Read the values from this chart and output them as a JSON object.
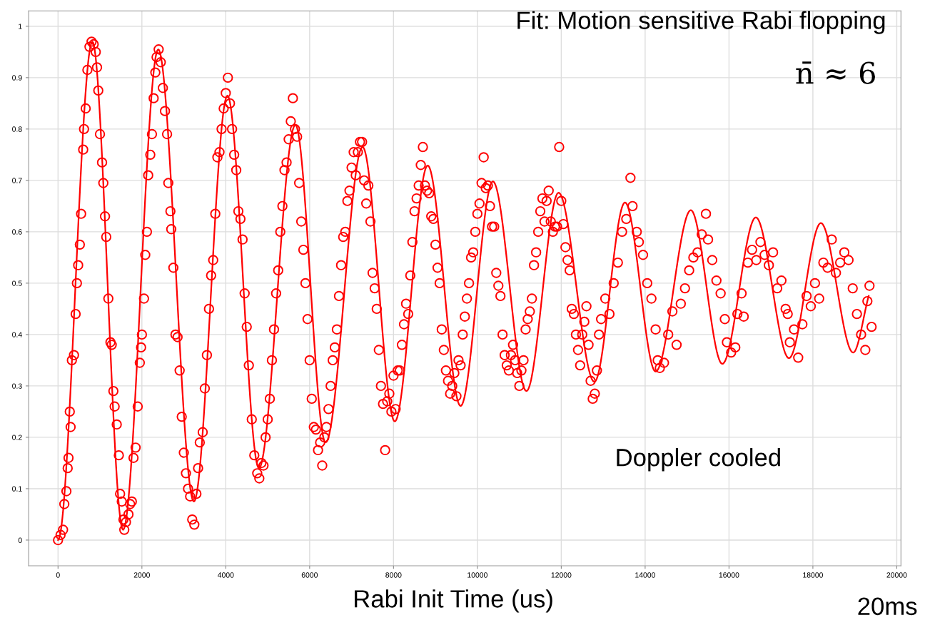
{
  "chart_data": {
    "type": "scatter",
    "xlabel": "Rabi Init Time (us)",
    "annotations": [
      "Fit: Motion sensitive Rabi flopping",
      "n̄ ≈ 6",
      "Doppler cooled",
      "20ms"
    ],
    "xlim": [
      -700,
      20100
    ],
    "ylim": [
      -0.05,
      1.03
    ],
    "xticks": [
      0,
      2000,
      4000,
      6000,
      8000,
      10000,
      12000,
      14000,
      16000,
      18000,
      20000
    ],
    "yticks": [
      0,
      0.1,
      0.2,
      0.3,
      0.4,
      0.5,
      0.6,
      0.7,
      0.8,
      0.9,
      1
    ],
    "grid": true,
    "legend": false,
    "series": [
      {
        "marker": "circle",
        "color": "#ff0000",
        "x": [
          0,
          60,
          120,
          150,
          200,
          230,
          250,
          300,
          280,
          330,
          380,
          420,
          450,
          480,
          520,
          550,
          600,
          620,
          660,
          700,
          750,
          800,
          850,
          900,
          930,
          960,
          1000,
          1050,
          1080,
          1120,
          1150,
          1200,
          1250,
          1280,
          1320,
          1350,
          1400,
          1450,
          1480,
          1520,
          1560,
          1580,
          1620,
          1680,
          1720,
          1760,
          1800,
          1850,
          1900,
          1950,
          1980,
          2000,
          2050,
          2080,
          2120,
          2150,
          2200,
          2240,
          2280,
          2320,
          2350,
          2400,
          2450,
          2500,
          2550,
          2600,
          2630,
          2680,
          2700,
          2750,
          2800,
          2850,
          2900,
          2950,
          3000,
          3050,
          3100,
          3150,
          3200,
          3250,
          3300,
          3340,
          3380,
          3450,
          3500,
          3550,
          3600,
          3650,
          3700,
          3750,
          3800,
          3850,
          3900,
          3950,
          4000,
          4050,
          4100,
          4150,
          4200,
          4250,
          4300,
          4350,
          4400,
          4450,
          4500,
          4550,
          4620,
          4680,
          4750,
          4800,
          4850,
          4900,
          4950,
          5000,
          5050,
          5100,
          5150,
          5200,
          5250,
          5300,
          5350,
          5400,
          5450,
          5500,
          5550,
          5600,
          5650,
          5700,
          5750,
          5800,
          5850,
          5900,
          5950,
          6000,
          6050,
          6100,
          6150,
          6200,
          6250,
          6300,
          6350,
          6400,
          6450,
          6500,
          6550,
          6600,
          6650,
          6700,
          6750,
          6800,
          6850,
          6900,
          6950,
          7000,
          7050,
          7100,
          7150,
          7200,
          7250,
          7300,
          7350,
          7400,
          7450,
          7500,
          7550,
          7600,
          7650,
          7700,
          7750,
          7800,
          7850,
          7900,
          7950,
          8000,
          8050,
          8100,
          8150,
          8200,
          8250,
          8300,
          8350,
          8400,
          8450,
          8500,
          8550,
          8600,
          8650,
          8700,
          8750,
          8800,
          8850,
          8900,
          8950,
          9000,
          9050,
          9100,
          9150,
          9200,
          9250,
          9300,
          9350,
          9400,
          9450,
          9500,
          9550,
          9600,
          9650,
          9700,
          9750,
          9800,
          9850,
          9900,
          9950,
          10000,
          10050,
          10100,
          10150,
          10200,
          10250,
          10300,
          10350,
          10400,
          10450,
          10500,
          10550,
          10600,
          10650,
          10700,
          10750,
          10800,
          10850,
          10900,
          10950,
          11000,
          11050,
          11100,
          11150,
          11200,
          11250,
          11300,
          11350,
          11400,
          11450,
          11500,
          11550,
          11600,
          11650,
          11700,
          11750,
          11800,
          11850,
          11900,
          11950,
          12000,
          12050,
          12100,
          12150,
          12200,
          12250,
          12300,
          12350,
          12400,
          12450,
          12500,
          12550,
          12600,
          12650,
          12700,
          12750,
          12800,
          12850,
          12900,
          12950,
          13050,
          13150,
          13250,
          13350,
          13450,
          13550,
          13650,
          13700,
          13800,
          13850,
          13950,
          14050,
          14150,
          14250,
          14300,
          14350,
          14450,
          14550,
          14650,
          14750,
          14850,
          14950,
          15050,
          15150,
          15250,
          15350,
          15450,
          15500,
          15600,
          15700,
          15800,
          15900,
          15950,
          16050,
          16150,
          16200,
          16300,
          16350,
          16450,
          16550,
          16650,
          16750,
          16850,
          16950,
          17050,
          17150,
          17250,
          17350,
          17400,
          17450,
          17550,
          17650,
          17750,
          17850,
          17950,
          18050,
          18150,
          18250,
          18350,
          18450,
          18550,
          18650,
          18750,
          18850,
          18950,
          19050,
          19150,
          19250,
          19300,
          19350,
          19400
        ],
        "values": [
          0,
          0.01,
          0.02,
          0.07,
          0.095,
          0.14,
          0.16,
          0.22,
          0.25,
          0.35,
          0.36,
          0.44,
          0.5,
          0.535,
          0.575,
          0.635,
          0.76,
          0.8,
          0.84,
          0.915,
          0.96,
          0.97,
          0.965,
          0.95,
          0.92,
          0.875,
          0.79,
          0.735,
          0.695,
          0.63,
          0.59,
          0.47,
          0.385,
          0.38,
          0.29,
          0.26,
          0.225,
          0.165,
          0.09,
          0.075,
          0.04,
          0.02,
          0.035,
          0.05,
          0.07,
          0.075,
          0.16,
          0.18,
          0.26,
          0.345,
          0.375,
          0.4,
          0.47,
          0.555,
          0.6,
          0.71,
          0.75,
          0.79,
          0.86,
          0.91,
          0.94,
          0.955,
          0.93,
          0.88,
          0.835,
          0.79,
          0.695,
          0.64,
          0.605,
          0.53,
          0.4,
          0.395,
          0.33,
          0.24,
          0.17,
          0.13,
          0.1,
          0.085,
          0.04,
          0.03,
          0.09,
          0.14,
          0.19,
          0.21,
          0.295,
          0.36,
          0.45,
          0.515,
          0.545,
          0.635,
          0.745,
          0.755,
          0.8,
          0.84,
          0.87,
          0.9,
          0.85,
          0.8,
          0.75,
          0.72,
          0.64,
          0.625,
          0.585,
          0.48,
          0.415,
          0.34,
          0.235,
          0.165,
          0.13,
          0.12,
          0.15,
          0.145,
          0.2,
          0.235,
          0.275,
          0.35,
          0.41,
          0.48,
          0.525,
          0.6,
          0.65,
          0.72,
          0.735,
          0.78,
          0.815,
          0.86,
          0.8,
          0.785,
          0.695,
          0.62,
          0.565,
          0.5,
          0.43,
          0.35,
          0.275,
          0.22,
          0.215,
          0.175,
          0.19,
          0.145,
          0.2,
          0.22,
          0.255,
          0.3,
          0.35,
          0.375,
          0.41,
          0.475,
          0.535,
          0.59,
          0.6,
          0.66,
          0.68,
          0.725,
          0.755,
          0.71,
          0.755,
          0.775,
          0.775,
          0.7,
          0.655,
          0.69,
          0.62,
          0.52,
          0.49,
          0.45,
          0.37,
          0.3,
          0.265,
          0.175,
          0.27,
          0.285,
          0.25,
          0.32,
          0.255,
          0.33,
          0.33,
          0.38,
          0.42,
          0.46,
          0.44,
          0.515,
          0.58,
          0.64,
          0.665,
          0.69,
          0.73,
          0.765,
          0.69,
          0.68,
          0.675,
          0.63,
          0.625,
          0.575,
          0.53,
          0.5,
          0.41,
          0.37,
          0.33,
          0.31,
          0.285,
          0.3,
          0.325,
          0.28,
          0.35,
          0.34,
          0.4,
          0.435,
          0.47,
          0.5,
          0.55,
          0.56,
          0.6,
          0.635,
          0.655,
          0.695,
          0.745,
          0.685,
          0.69,
          0.65,
          0.61,
          0.61,
          0.52,
          0.495,
          0.475,
          0.4,
          0.36,
          0.34,
          0.33,
          0.36,
          0.38,
          0.35,
          0.325,
          0.3,
          0.33,
          0.35,
          0.41,
          0.43,
          0.445,
          0.47,
          0.535,
          0.56,
          0.6,
          0.64,
          0.665,
          0.62,
          0.66,
          0.68,
          0.62,
          0.6,
          0.61,
          0.61,
          0.765,
          0.66,
          0.615,
          0.57,
          0.545,
          0.525,
          0.45,
          0.44,
          0.4,
          0.37,
          0.34,
          0.4,
          0.425,
          0.455,
          0.38,
          0.31,
          0.275,
          0.285,
          0.33,
          0.4,
          0.43,
          0.47,
          0.44,
          0.5,
          0.54,
          0.6,
          0.625,
          0.705,
          0.65,
          0.6,
          0.58,
          0.555,
          0.5,
          0.47,
          0.41,
          0.35,
          0.335,
          0.345,
          0.4,
          0.445,
          0.38,
          0.46,
          0.49,
          0.525,
          0.55,
          0.56,
          0.595,
          0.635,
          0.585,
          0.545,
          0.505,
          0.48,
          0.43,
          0.385,
          0.365,
          0.375,
          0.44,
          0.48,
          0.435,
          0.54,
          0.565,
          0.545,
          0.58,
          0.555,
          0.535,
          0.56,
          0.49,
          0.505,
          0.45,
          0.44,
          0.385,
          0.41,
          0.355,
          0.42,
          0.475,
          0.455,
          0.5,
          0.47,
          0.54,
          0.53,
          0.585,
          0.52,
          0.54,
          0.56,
          0.545,
          0.49,
          0.44,
          0.4,
          0.37,
          0.465,
          0.495,
          0.415
        ]
      },
      {
        "type": "line",
        "marker": "none",
        "line_style": "solid",
        "color": "#ff0000",
        "x": [
          0,
          819,
          1550,
          2390,
          3240,
          4040,
          4790,
          5660,
          6380,
          7263,
          8030,
          8815,
          9600,
          10370,
          11170,
          11935,
          12790,
          13520,
          14250,
          15090,
          15840,
          16640,
          17430,
          18190,
          18960,
          19330
        ],
        "values": [
          0,
          0.97,
          0.02,
          0.955,
          0.075,
          0.865,
          0.14,
          0.808,
          0.19,
          0.765,
          0.231,
          0.729,
          0.261,
          0.698,
          0.29,
          0.676,
          0.308,
          0.657,
          0.328,
          0.642,
          0.343,
          0.628,
          0.354,
          0.617,
          0.365,
          0.475
        ]
      }
    ]
  }
}
